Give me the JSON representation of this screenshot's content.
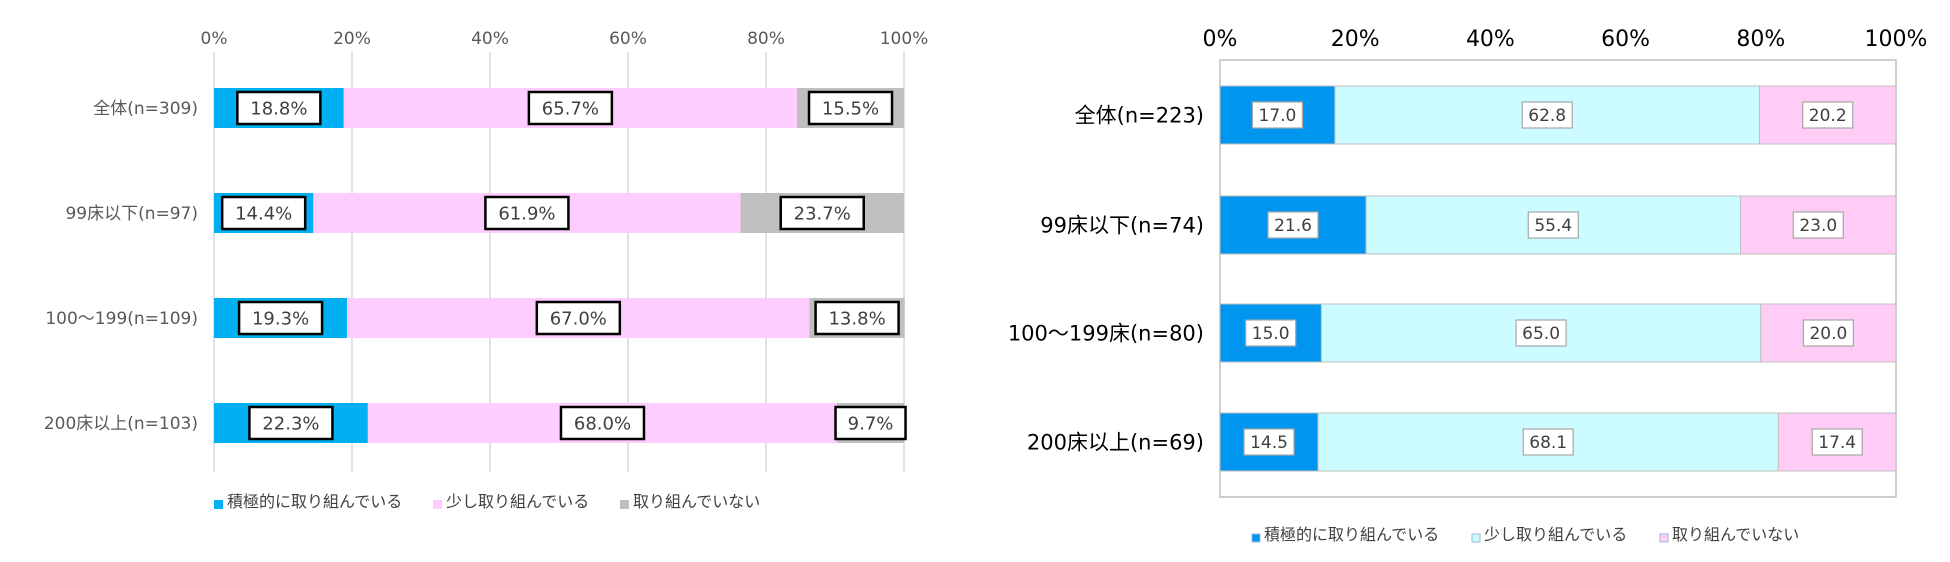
{
  "chart_data": [
    {
      "type": "bar",
      "orientation": "horizontal",
      "stacked": true,
      "percent": true,
      "categories": [
        "全体(n=309)",
        "99床以下(n=97)",
        "100～199(n=109)",
        "200床以上(n=103)"
      ],
      "series": [
        {
          "name": "積極的に取り組んでいる",
          "values": [
            18.8,
            14.4,
            19.3,
            22.3
          ],
          "labels": [
            "18.8%",
            "14.4%",
            "19.3%",
            "22.3%"
          ],
          "color": "#00b0f0"
        },
        {
          "name": "少し取り組んでいる",
          "values": [
            65.7,
            61.9,
            67.0,
            68.0
          ],
          "labels": [
            "65.7%",
            "61.9%",
            "67.0%",
            "68.0%"
          ],
          "color": "#ffccff"
        },
        {
          "name": "取り組んでいない",
          "values": [
            15.5,
            23.7,
            13.8,
            9.7
          ],
          "labels": [
            "15.5%",
            "23.7%",
            "13.8%",
            "9.7%"
          ],
          "color": "#bfbfbf"
        }
      ],
      "xlim": [
        0,
        100
      ],
      "xticks": [
        "0%",
        "20%",
        "40%",
        "60%",
        "80%",
        "100%"
      ],
      "grid": true,
      "legend_position": "bottom-left"
    },
    {
      "type": "bar",
      "orientation": "horizontal",
      "stacked": true,
      "percent": true,
      "categories": [
        "全体(n=223)",
        "99床以下(n=74)",
        "100～199床(n=80)",
        "200床以上(n=69)"
      ],
      "series": [
        {
          "name": "積極的に取り組んでいる",
          "values": [
            17.0,
            21.6,
            15.0,
            14.5
          ],
          "labels": [
            "17.0",
            "21.6",
            "15.0",
            "14.5"
          ],
          "color": "#0096f0"
        },
        {
          "name": "少し取り組んでいる",
          "values": [
            62.8,
            55.4,
            65.0,
            68.1
          ],
          "labels": [
            "62.8",
            "55.4",
            "65.0",
            "68.1"
          ],
          "color": "#ccfcff"
        },
        {
          "name": "取り組んでいない",
          "values": [
            20.2,
            23.0,
            20.0,
            17.4
          ],
          "labels": [
            "20.2",
            "23.0",
            "20.0",
            "17.4"
          ],
          "color": "#ffccf5"
        }
      ],
      "xlim": [
        0,
        100
      ],
      "xticks": [
        "0%",
        "20%",
        "40%",
        "60%",
        "80%",
        "100%"
      ],
      "grid": false,
      "legend_position": "bottom-center"
    }
  ]
}
